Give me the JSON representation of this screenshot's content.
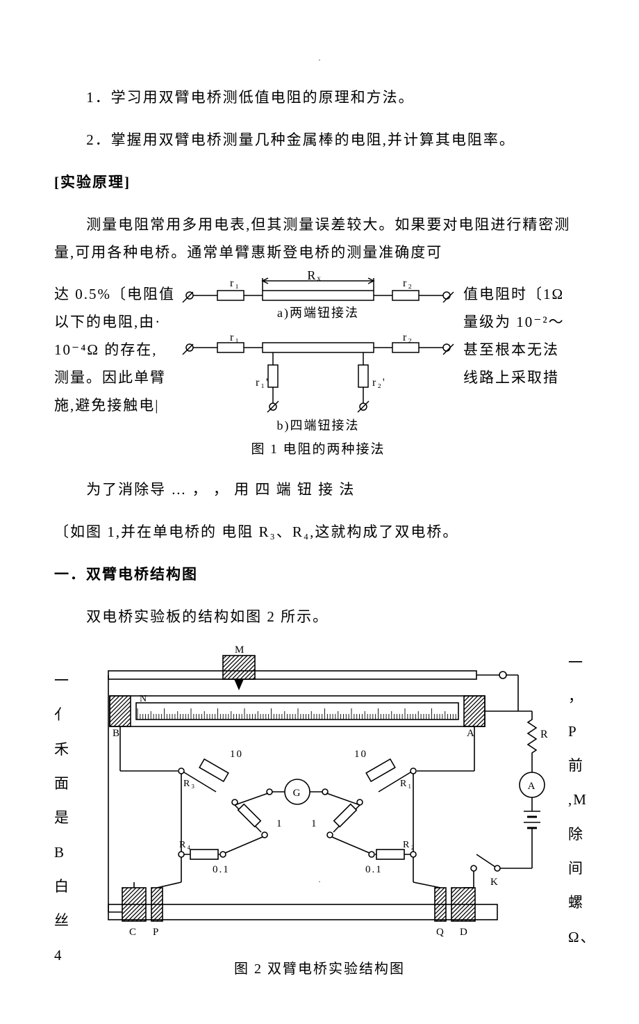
{
  "lines": {
    "l1": "1．学习用双臂电桥测低值电阻的原理和方法。",
    "l2": "2．掌握用双臂电桥测量几种金属棒的电阻,并计算其电阻率。",
    "headA": "[实验原理]",
    "para1": "测量电阻常用多用电表,但其测量误差较大。如果要对电阻进行精密测量,可用各种电桥。通常单臂惠斯登电桥的测量准确度可",
    "leftCol": {
      "a": "达 0.5%〔电阻值",
      "b": "以下的电阻,由·",
      "c": "10⁻⁴Ω 的存在,",
      "d": "测量。因此单臂",
      "e": "施,避免接触电|"
    },
    "rightCol": {
      "a": "值电阻时〔1Ω",
      "b": "量级为 10⁻²～",
      "c": "甚至根本无法",
      "d": "线路上采取措"
    },
    "afterFig1a": "为了消除导      …           ，             ，   用 四 端 钮 接 法",
    "afterFig1b": "〔如图 1,并在单电桥的                              电阻 R₃、R₄,这就构成了双电桥。",
    "headB": "一．双臂电桥结构图",
    "para2": "双电桥实验板的结构如图 2 所示。",
    "fig1_cap_a": "a)两端钮接法",
    "fig1_cap_b": "b)四端钮接法",
    "fig1_caption": "图 1 电阻的两种接法",
    "fig2_caption": "图 2 双臂电桥实验结构图"
  },
  "fig1": {
    "labels": {
      "r1": "r₁",
      "r2": "r₂",
      "Rx": "Rₓ",
      "r1p": "r₁'",
      "r2p": "r₂'"
    },
    "colors": {
      "stroke": "#000000"
    }
  },
  "fig2": {
    "labels": {
      "M": "M",
      "N": "N",
      "A": "A",
      "B": "B",
      "C": "C",
      "D": "D",
      "P": "P",
      "Q": "Q",
      "R": "R",
      "R1": "R₁",
      "R2": "R₂",
      "R3": "R₃",
      "R4": "R₄",
      "G": "G",
      "K": "K",
      "ten": "10",
      "one": "1",
      "p01": "0.1",
      "Amp": "A"
    },
    "leftLetters": [
      "一",
      "亻",
      "禾",
      "面",
      "是",
      "B",
      "白",
      "丝",
      "4"
    ],
    "rightLetters": [
      "一",
      "，P",
      "前",
      ",M",
      "除",
      "间",
      "螺",
      "Ω、"
    ],
    "colors": {
      "stroke": "#000000",
      "hatch": "#000000"
    }
  }
}
